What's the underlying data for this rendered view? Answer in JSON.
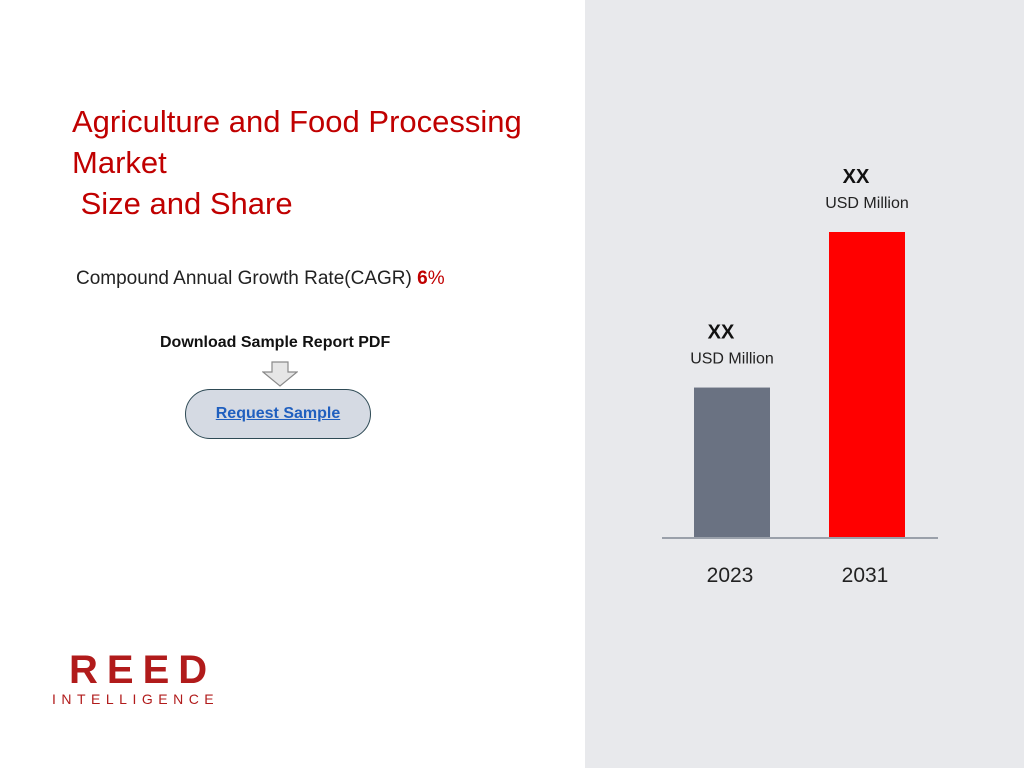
{
  "title_lines": [
    "Agriculture and Food Processing",
    "Market",
    " Size and Share"
  ],
  "cagr": {
    "label": "Compound Annual Growth Rate(CAGR) ",
    "value": "6",
    "unit": "%"
  },
  "download_label": "Download Sample Report PDF",
  "request_button": "Request Sample",
  "logo": {
    "top": "REED",
    "bottom": "INTELLIGENCE"
  },
  "colors": {
    "accent": "#c00000",
    "bar_2023": "#6a7282",
    "bar_2031": "#ff0000",
    "panel": "#e8e9ec"
  },
  "icons": {
    "download_arrow": "down-arrow-icon"
  },
  "chart_data": {
    "type": "bar",
    "categories": [
      "2023",
      "2031"
    ],
    "values": [
      49,
      100
    ],
    "value_labels": [
      "XX",
      "XX"
    ],
    "unit_labels": [
      "USD Million",
      "USD Million"
    ],
    "colors": [
      "#6a7282",
      "#ff0000"
    ],
    "ylim": [
      0,
      100
    ],
    "grid": false,
    "legend": "none"
  }
}
